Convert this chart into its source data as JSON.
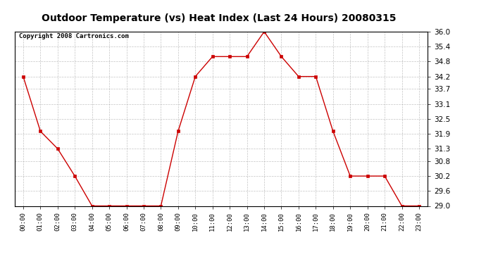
{
  "title": "Outdoor Temperature (vs) Heat Index (Last 24 Hours) 20080315",
  "copyright": "Copyright 2008 Cartronics.com",
  "x_labels": [
    "00:00",
    "01:00",
    "02:00",
    "03:00",
    "04:00",
    "05:00",
    "06:00",
    "07:00",
    "08:00",
    "09:00",
    "10:00",
    "11:00",
    "12:00",
    "13:00",
    "14:00",
    "15:00",
    "16:00",
    "17:00",
    "18:00",
    "19:00",
    "20:00",
    "21:00",
    "22:00",
    "23:00"
  ],
  "y_values": [
    34.2,
    32.0,
    31.3,
    30.2,
    29.0,
    29.0,
    29.0,
    29.0,
    29.0,
    32.0,
    34.2,
    35.0,
    35.0,
    35.0,
    36.0,
    35.0,
    34.2,
    34.2,
    32.0,
    30.2,
    30.2,
    30.2,
    29.0,
    29.0
  ],
  "line_color": "#cc0000",
  "marker": "s",
  "marker_size": 3,
  "bg_color": "#ffffff",
  "grid_color": "#aaaaaa",
  "ylim_min": 29.0,
  "ylim_max": 36.0,
  "yticks": [
    29.0,
    29.6,
    30.2,
    30.8,
    31.3,
    31.9,
    32.5,
    33.1,
    33.7,
    34.2,
    34.8,
    35.4,
    36.0
  ],
  "title_fontsize": 10,
  "copyright_fontsize": 6.5
}
